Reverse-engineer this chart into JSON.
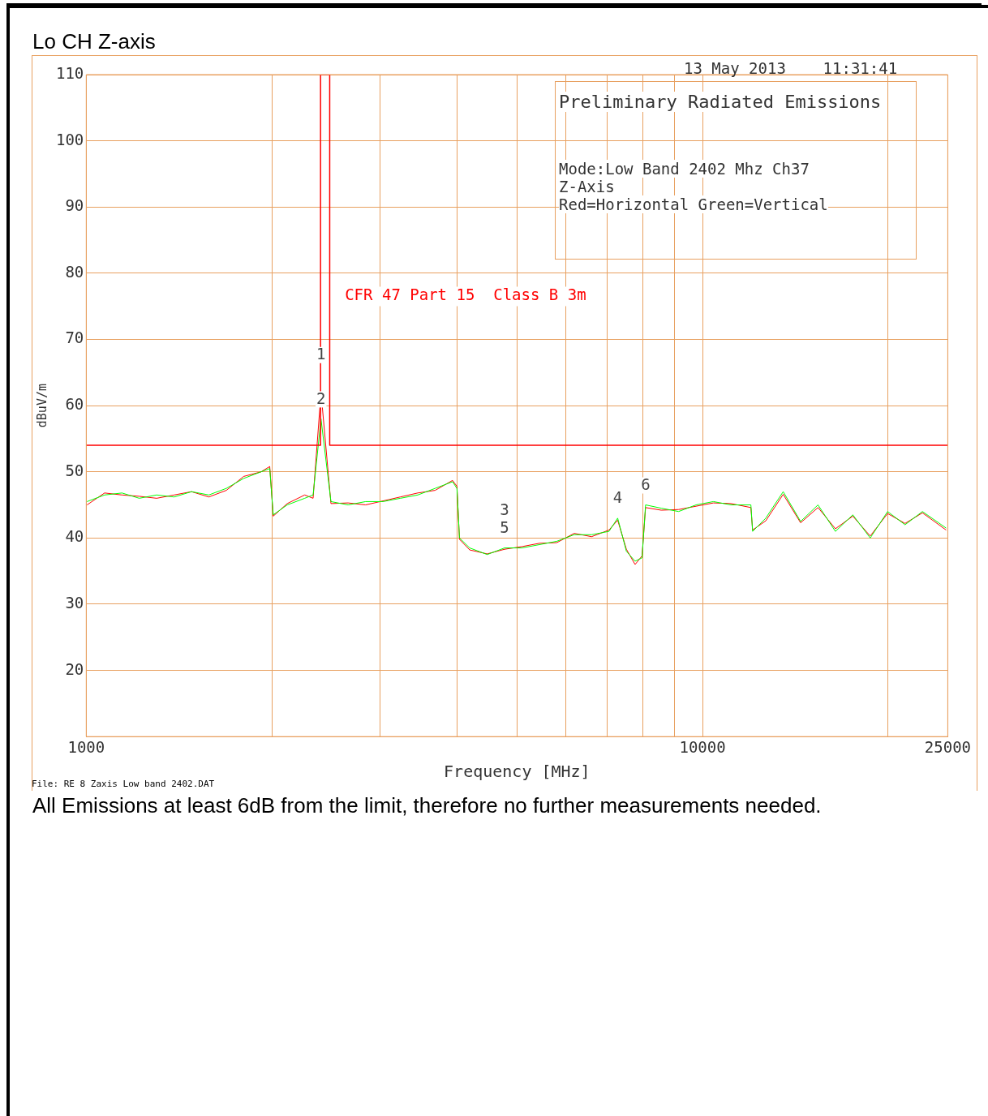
{
  "chart_data": {
    "type": "line",
    "title": "Lo CH Z-axis",
    "xlabel": "Frequency [MHz]",
    "ylabel": "dBuV/m",
    "log": "x",
    "grid": true,
    "legend": false,
    "marker": "none",
    "line_style": "solid",
    "xlim": [
      1000,
      25000
    ],
    "ylim": [
      10,
      110
    ],
    "xticks": [
      1000,
      {
        "value": 2000,
        "label": null
      },
      {
        "value": 3000,
        "label": null
      },
      {
        "value": 4000,
        "label": null
      },
      {
        "value": 5000,
        "label": null
      },
      {
        "value": 6000,
        "label": null
      },
      {
        "value": 7000,
        "label": null
      },
      {
        "value": 8000,
        "label": null
      },
      {
        "value": 9000,
        "label": null
      },
      10000,
      {
        "value": 20000,
        "label": null
      },
      25000
    ],
    "yticks": [
      {
        "value": 10,
        "label": null
      },
      20,
      30,
      40,
      50,
      60,
      70,
      80,
      90,
      100,
      110
    ],
    "series": [
      {
        "color": "#ff0000",
        "x": [
          1003,
          1071,
          1143,
          1219,
          1301,
          1389,
          1482,
          1581,
          1688,
          1801,
          1922,
          1985,
          2011,
          2119,
          2262,
          2334,
          2404,
          2495,
          2660,
          2840,
          3030,
          3234,
          3451,
          3683,
          3930,
          3995,
          4033,
          4190,
          4473,
          4773,
          5094,
          5436,
          5801,
          6191,
          6607,
          7050,
          7283,
          7524,
          7773,
          7978,
          8083,
          8571,
          9146,
          9761,
          10417,
          11117,
          11980,
          12058,
          12667,
          13518,
          14426,
          15395,
          16430,
          17534,
          18712,
          19969,
          21311,
          22743,
          24850
        ],
        "values": [
          45,
          46.8,
          46.5,
          46.3,
          46,
          46.5,
          47,
          46.2,
          47.2,
          49.3,
          50,
          50.8,
          43.3,
          45.2,
          46.5,
          46,
          62,
          45.2,
          45.3,
          45,
          45.6,
          46.2,
          46.8,
          47.2,
          48.7,
          47.8,
          39.8,
          38.2,
          37.6,
          38.3,
          38.7,
          39.2,
          39.3,
          40.7,
          40.2,
          41.2,
          42.7,
          38.3,
          36,
          37.3,
          44.6,
          44.2,
          44.3,
          44.8,
          45.3,
          45.2,
          44.6,
          41.2,
          42.6,
          46.6,
          42.3,
          44.6,
          41.4,
          43.3,
          40.3,
          43.7,
          42.2,
          43.8,
          41.2
        ]
      },
      {
        "color": "#00ff00",
        "x": [
          1003,
          1071,
          1143,
          1219,
          1301,
          1389,
          1482,
          1581,
          1688,
          1801,
          1922,
          1985,
          2011,
          2119,
          2262,
          2334,
          2404,
          2495,
          2660,
          2840,
          3030,
          3234,
          3451,
          3683,
          3930,
          3995,
          4033,
          4190,
          4473,
          4773,
          5094,
          5436,
          5801,
          6191,
          6607,
          7050,
          7283,
          7524,
          7773,
          7978,
          8083,
          8571,
          9146,
          9761,
          10417,
          11117,
          11980,
          12058,
          12667,
          13518,
          14426,
          15395,
          16430,
          17534,
          18712,
          19969,
          21311,
          22743,
          24850
        ],
        "values": [
          45.5,
          46.5,
          46.8,
          46,
          46.5,
          46.2,
          47,
          46.5,
          47.5,
          49,
          50,
          50.5,
          43.5,
          45,
          46,
          46.5,
          58,
          45.5,
          45,
          45.5,
          45.5,
          46,
          46.5,
          47.5,
          48.5,
          47.5,
          40,
          38.5,
          37.5,
          38.5,
          38.5,
          39,
          39.5,
          40.5,
          40.5,
          41,
          43,
          38,
          36.5,
          37,
          45,
          44.5,
          44,
          45,
          45.5,
          45,
          45,
          41,
          43,
          47,
          42.5,
          45,
          41,
          43.5,
          40,
          44,
          42,
          44,
          41.5
        ]
      },
      {
        "name": "CFR 47 Part 15  Class B 3m",
        "color": "#ff0000",
        "x": [
          1000,
          2400,
          2400,
          2483.5,
          2483.5,
          25000
        ],
        "values": [
          54,
          54,
          110,
          110,
          54,
          54
        ]
      }
    ],
    "annotations": [
      "13 May 2013    11:31:41",
      "Preliminary Radiated Emissions",
      "Mode:Low Band 2402 Mhz Ch37",
      "Z-Axis",
      "Red=Horizontal Green=Vertical",
      "File: RE 8 Zaxis Low band 2402.DAT",
      "All Emissions at least 6dB from the limit, therefore no further measurements needed.",
      {
        "text": "1",
        "x": 2404,
        "y": 62
      },
      {
        "text": "2",
        "x": 2404,
        "y": 58
      },
      {
        "text": "3",
        "x": 4773,
        "y": 38.5
      },
      {
        "text": "5",
        "x": 4773,
        "y": 38.5
      },
      {
        "text": "4",
        "x": 7283,
        "y": 43
      },
      {
        "text": "6",
        "x": 8083,
        "y": 45
      }
    ]
  }
}
